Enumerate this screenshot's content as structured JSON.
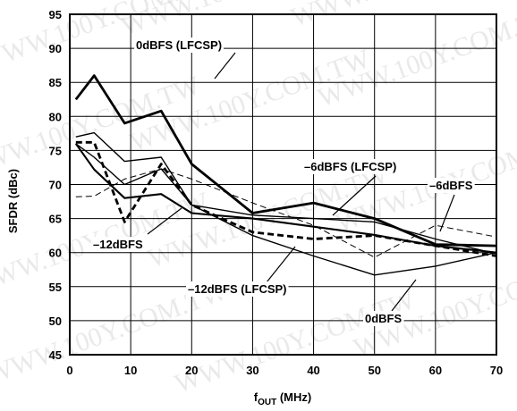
{
  "chart_data": {
    "type": "line",
    "xlabel": "f",
    "xlabel_sub": "OUT",
    "xlabel_unit": " (MHz)",
    "ylabel": "SFDR (dBc)",
    "xlim": [
      0,
      70
    ],
    "ylim": [
      45,
      95
    ],
    "x_ticks": [
      0,
      10,
      20,
      30,
      40,
      50,
      60,
      70
    ],
    "y_ticks": [
      45,
      50,
      55,
      60,
      65,
      70,
      75,
      80,
      85,
      90,
      95
    ],
    "grid": true,
    "watermark": "WWW.100Y.COM.TW",
    "series": [
      {
        "name": "0dBFS (LFCSP)",
        "style": "solid-thick",
        "x": [
          1,
          4,
          9,
          15,
          20,
          30,
          40,
          50,
          60,
          70
        ],
        "y": [
          82.5,
          86,
          79,
          80.8,
          73,
          65.8,
          67.3,
          65,
          61.2,
          61
        ]
      },
      {
        "name": "-6dBFS (LFCSP)",
        "style": "solid-thin",
        "x": [
          1,
          4,
          9,
          15,
          20,
          30,
          40,
          50,
          60,
          70
        ],
        "y": [
          77,
          77.6,
          73.4,
          74,
          67,
          65.5,
          65,
          64.5,
          62,
          59.8
        ]
      },
      {
        "name": "-12dBFS (LFCSP)",
        "style": "solid-medium",
        "x": [
          1,
          4,
          9,
          15,
          20,
          30,
          40,
          50,
          60,
          70
        ],
        "y": [
          76,
          72.2,
          68,
          68.6,
          65.8,
          65,
          63.8,
          62.6,
          61,
          60
        ]
      },
      {
        "name": "0dBFS",
        "style": "solid-thin",
        "x": [
          1,
          4,
          9,
          15,
          20,
          30,
          40,
          50,
          60,
          70
        ],
        "y": [
          76,
          74,
          70,
          72.3,
          67,
          62.5,
          59.5,
          56.7,
          58,
          60
        ]
      },
      {
        "name": "-6dBFS",
        "style": "dashed-thin",
        "x": [
          1,
          4,
          9,
          15,
          20,
          30,
          40,
          50,
          60,
          70
        ],
        "y": [
          68.2,
          68.3,
          70.8,
          72.3,
          70.8,
          67.3,
          64,
          59.3,
          64,
          62.3
        ]
      },
      {
        "name": "-12dBFS",
        "style": "dashed-thick",
        "x": [
          1,
          4,
          9,
          15,
          20,
          30,
          40,
          50,
          60,
          70
        ],
        "y": [
          76.2,
          76.2,
          64.5,
          73,
          67,
          63,
          62,
          62.5,
          61,
          59.5
        ]
      }
    ],
    "annotations": [
      {
        "text": "0dBFS (LFCSP)",
        "series": 0
      },
      {
        "text": "–6dBFS (LFCSP)",
        "series": 1
      },
      {
        "text": "–6dBFS",
        "series": 4
      },
      {
        "text": "–12dBFS",
        "series": 5
      },
      {
        "text": "–12dBFS (LFCSP)",
        "series": 2
      },
      {
        "text": "0dBFS",
        "series": 3
      }
    ]
  }
}
